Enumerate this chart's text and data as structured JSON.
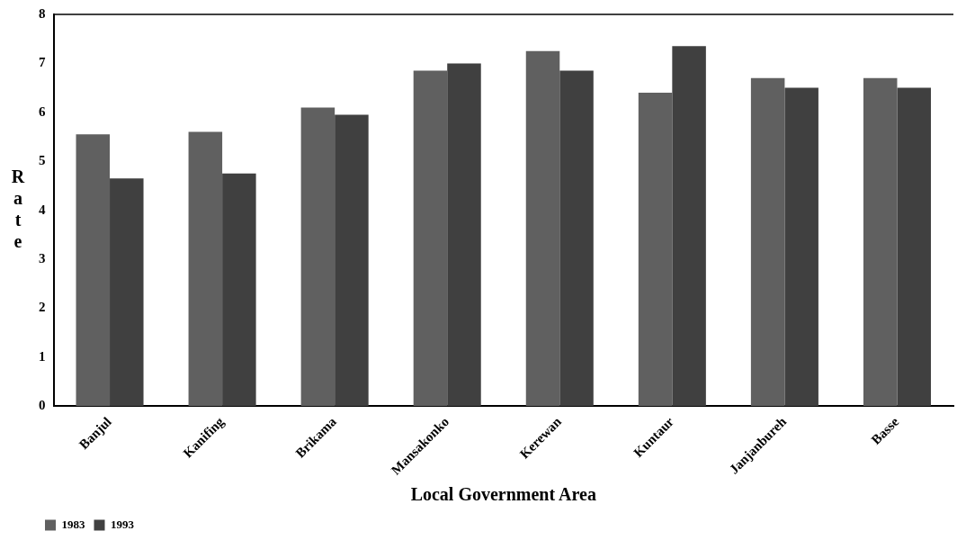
{
  "chart_data": {
    "type": "bar",
    "xlabel": "Local Government Area",
    "ylabel": "Rate",
    "categories": [
      "Banjul",
      "Kanifing",
      "Brikama",
      "Mansakonko",
      "Kerewan",
      "Kuntaur",
      "Janjanbureh",
      "Basse"
    ],
    "series": [
      {
        "name": "1983",
        "color": "#606060",
        "values": [
          5.55,
          5.6,
          6.1,
          6.85,
          7.25,
          6.4,
          6.7,
          6.7
        ]
      },
      {
        "name": "1993",
        "color": "#404040",
        "values": [
          4.65,
          4.75,
          5.95,
          7.0,
          6.85,
          7.35,
          6.5,
          6.5
        ]
      }
    ],
    "ylim": [
      0,
      8
    ],
    "yticks": [
      0,
      1,
      2,
      3,
      4,
      5,
      6,
      7,
      8
    ],
    "grid": false,
    "legend": "bottom left"
  }
}
